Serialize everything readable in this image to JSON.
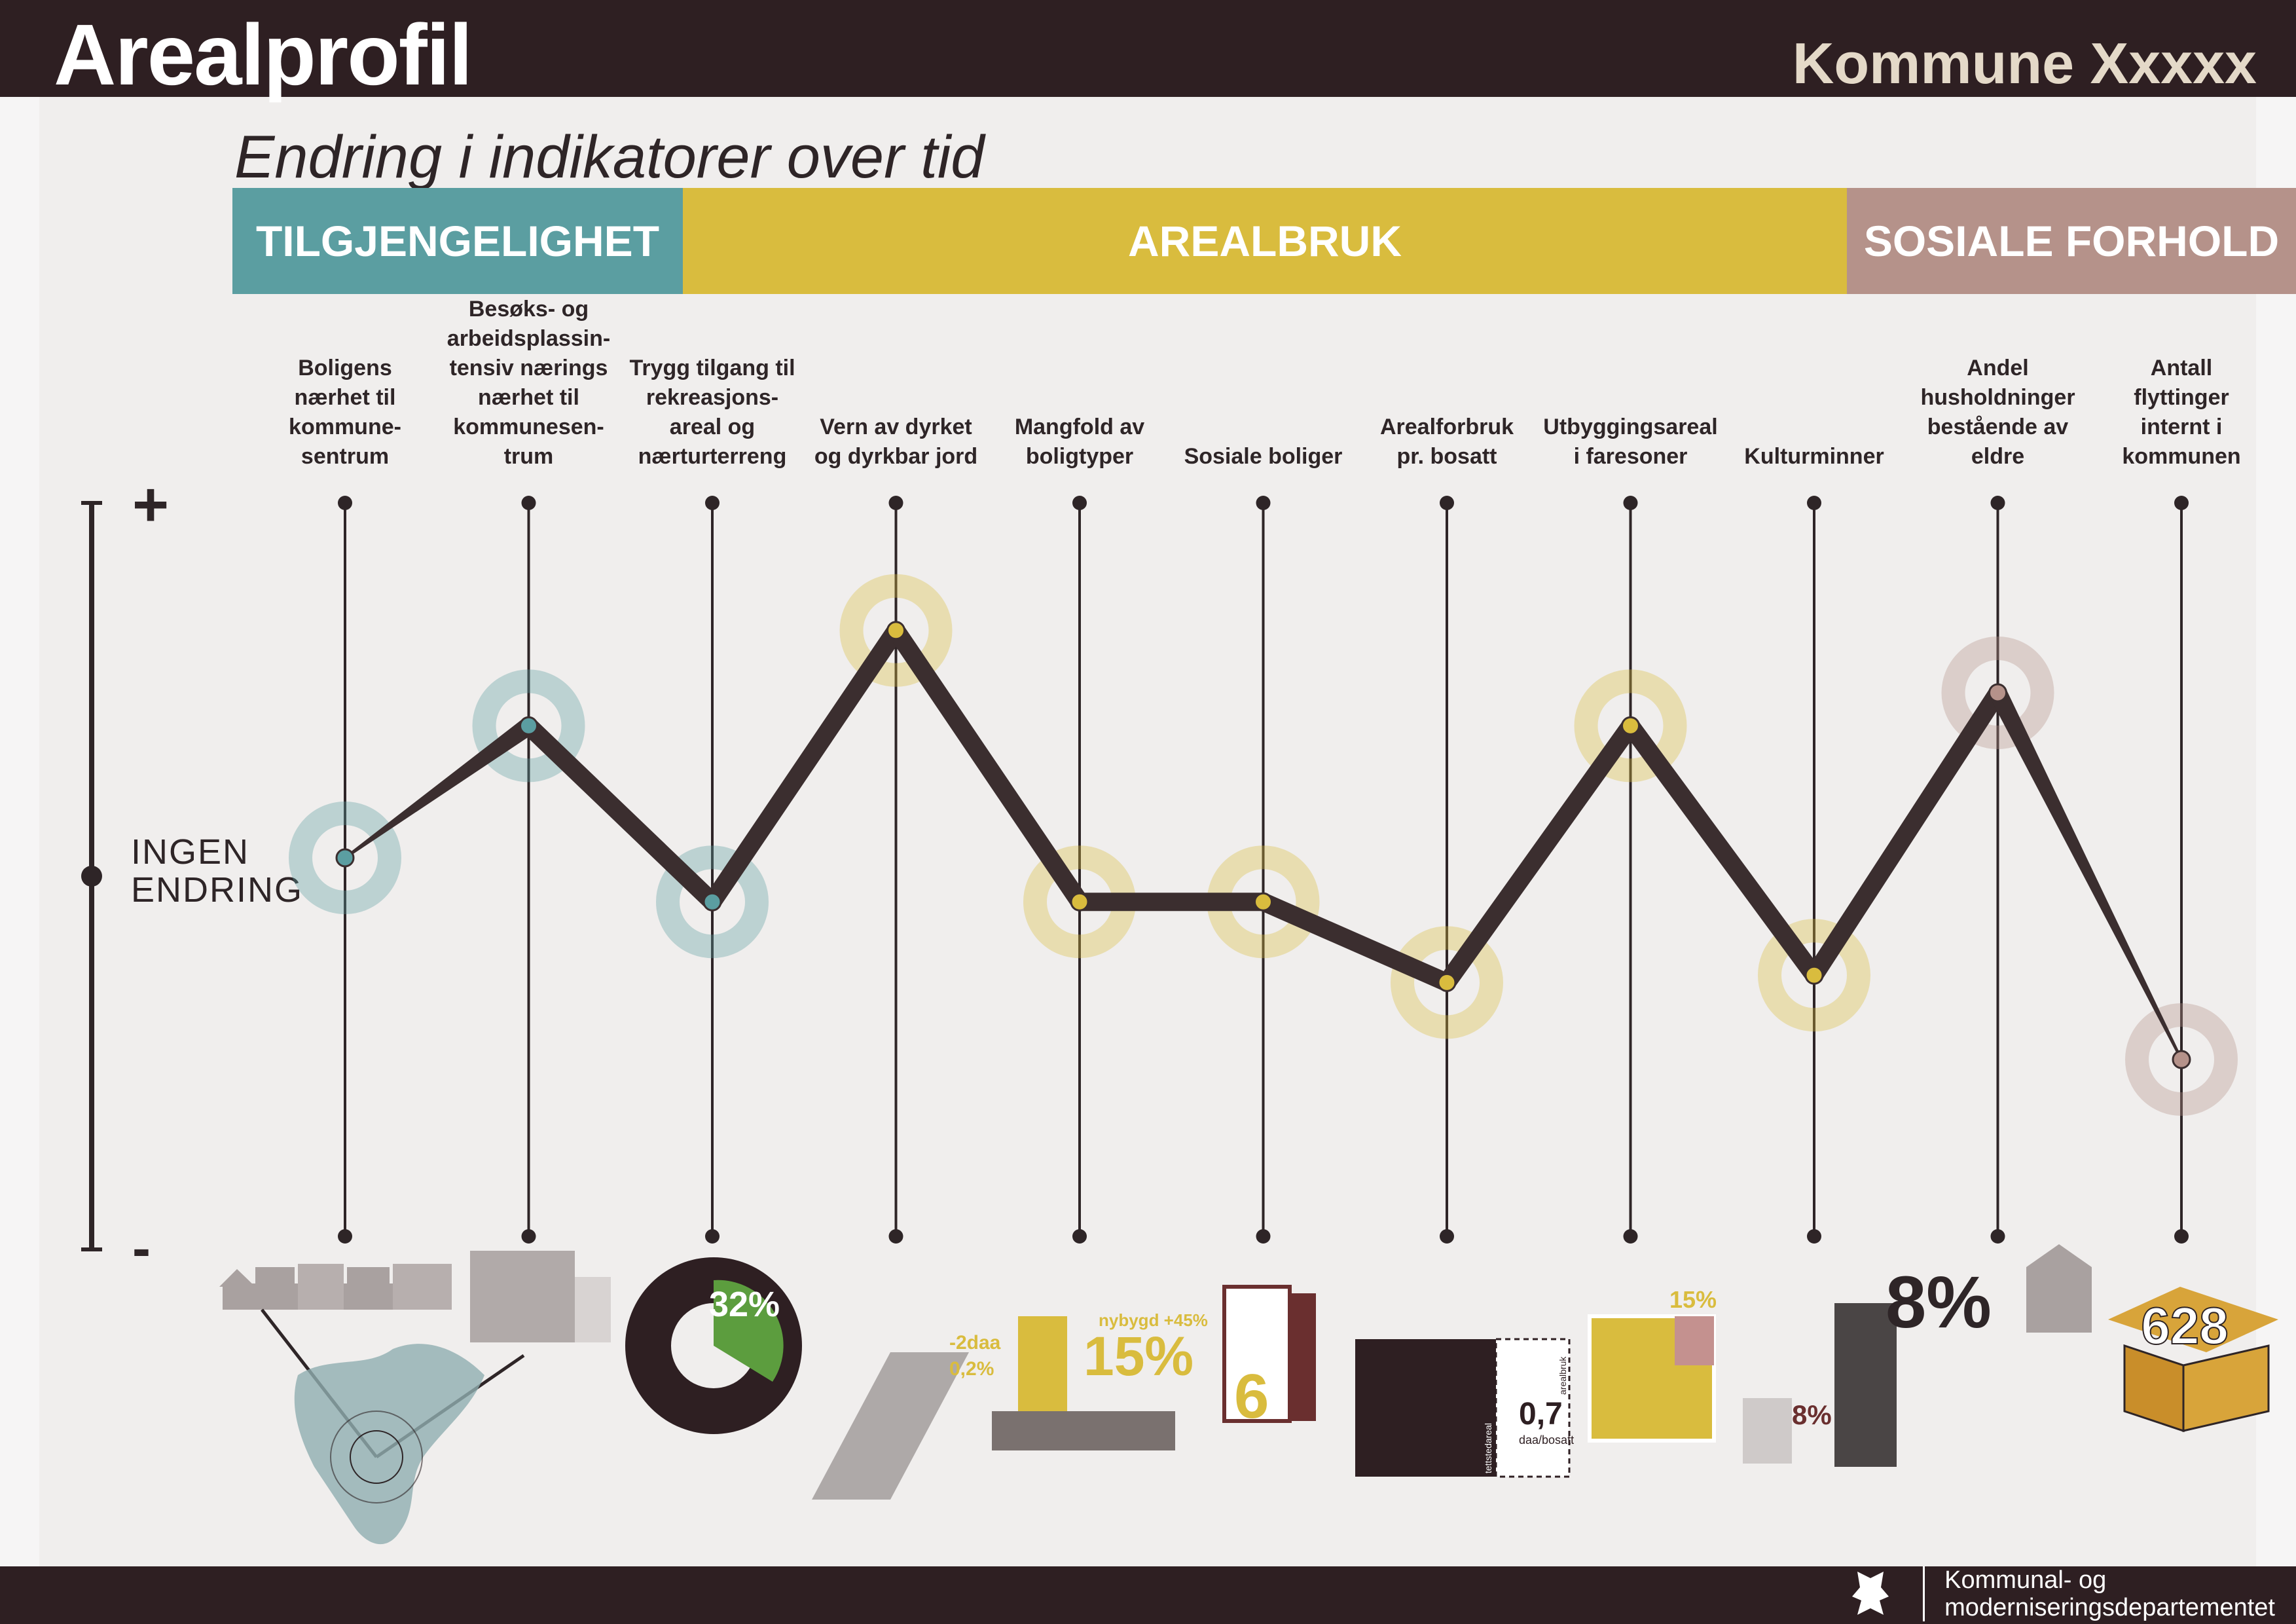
{
  "header": {
    "title": "Arealprofil",
    "municipality": "Kommune Xxxxx"
  },
  "subtitle": "Endring i indikatorer over tid",
  "categories": [
    {
      "label": "TILGJENGELIGHET",
      "color": "#5b9ea1"
    },
    {
      "label": "AREALBRUK",
      "color": "#d9bc3e"
    },
    {
      "label": "SOSIALE FORHOLD",
      "color": "#b5928a"
    }
  ],
  "axis": {
    "plus_label": "+",
    "minus_label": "-",
    "zero_label": "INGEN\nENDRING"
  },
  "colors": {
    "line": "#3b2e2f",
    "tilgjengelighet": "#5b9ea1",
    "arealbruk": "#d9bc3e",
    "sosiale": "#b5928a",
    "background": "#f0eeed",
    "bar": "#2e1f22"
  },
  "chart_data": {
    "type": "line",
    "ylim": [
      -1,
      1
    ],
    "categories": [
      "Boligens\nnærhet til\nkommune-\nsentrum",
      "Besøks- og\narbeidsplassin-\ntensiv nærings\nnærhet til\nkommunesen-\ntrum",
      "Trygg tilgang til\nrekreasjons-\nareal og\nnærturterreng",
      "Vern av dyrket\nog dyrkbar jord",
      "Mangfold av\nboligtyper",
      "Sosiale boliger",
      "Arealforbruk\npr. bosatt",
      "Utbyggingsareal\ni faresoner",
      "Kulturminner",
      "Andel\nhusholdninger\nbestående av\neldre",
      "Antall\nflyttinger\ninternt i\nkommunen"
    ],
    "groups": [
      "tilgjengelighet",
      "tilgjengelighet",
      "tilgjengelighet",
      "arealbruk",
      "arealbruk",
      "arealbruk",
      "arealbruk",
      "arealbruk",
      "arealbruk",
      "sosiale",
      "sosiale"
    ],
    "values": [
      0.05,
      0.41,
      -0.07,
      0.67,
      -0.07,
      -0.07,
      -0.29,
      0.41,
      -0.27,
      0.5,
      -0.5
    ]
  },
  "illustrations": {
    "tilgang_pct": "32%",
    "dyrket": {
      "change": "-2daa",
      "pct": "0,2%"
    },
    "boligtyper": {
      "note": "nybygd +45%",
      "pct": "15%"
    },
    "sosiale_boliger": "6",
    "arealforbruk": {
      "value": "0,7",
      "unit": "daa/bosatt",
      "left_label": "tettstedareal",
      "right_label": "arealbruk"
    },
    "faresoner_pct": "15%",
    "kulturminner_pct": "8%",
    "eldre_pct": "8%",
    "flyttinger": "628"
  },
  "footer": {
    "department": "Kommunal- og\nmoderniseringsdepartementet"
  }
}
